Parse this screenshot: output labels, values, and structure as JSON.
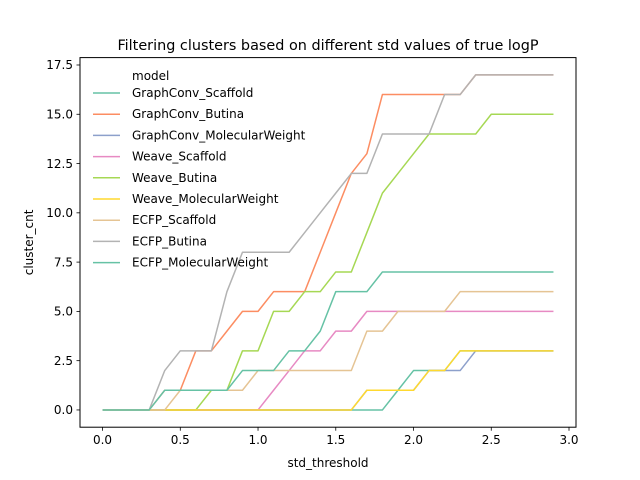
{
  "chart_data": {
    "type": "line",
    "title": "Filtering clusters based on different std values of true logP",
    "xlabel": "std_threshold",
    "ylabel": "cluster_cnt",
    "xlim": [
      -0.145,
      3.045
    ],
    "ylim": [
      -0.875,
      17.875
    ],
    "xticks": [
      0.0,
      0.5,
      1.0,
      1.5,
      2.0,
      2.5,
      3.0
    ],
    "xtick_labels": [
      "0.0",
      "0.5",
      "1.0",
      "1.5",
      "2.0",
      "2.5",
      "3.0"
    ],
    "yticks": [
      0.0,
      2.5,
      5.0,
      7.5,
      10.0,
      12.5,
      15.0,
      17.5
    ],
    "ytick_labels": [
      "0.0",
      "2.5",
      "5.0",
      "7.5",
      "10.0",
      "12.5",
      "15.0",
      "17.5"
    ],
    "legend_title": "model",
    "legend_position": "upper-left",
    "grid": false,
    "x": [
      0.0,
      0.1,
      0.2,
      0.3,
      0.4,
      0.5,
      0.6,
      0.7,
      0.8,
      0.9,
      1.0,
      1.1,
      1.2,
      1.3,
      1.4,
      1.5,
      1.6,
      1.7,
      1.8,
      1.9,
      2.0,
      2.1,
      2.2,
      2.3,
      2.4,
      2.5,
      2.6,
      2.7,
      2.8,
      2.9
    ],
    "series": [
      {
        "name": "GraphConv_Scaffold",
        "color": "#66c2a5",
        "values": [
          0,
          0,
          0,
          0,
          0,
          0,
          0,
          0,
          0,
          0,
          0,
          0,
          0,
          0,
          0,
          0,
          0,
          0,
          0,
          1,
          2,
          2,
          2,
          3,
          3,
          3,
          3,
          3,
          3,
          3
        ]
      },
      {
        "name": "GraphConv_Butina",
        "color": "#fc8d62",
        "values": [
          0,
          0,
          0,
          0,
          1,
          1,
          3,
          3,
          4,
          5,
          5,
          6,
          6,
          6,
          8,
          10,
          12,
          13,
          16,
          16,
          16,
          16,
          16,
          16,
          17,
          17,
          17,
          17,
          17,
          17
        ]
      },
      {
        "name": "GraphConv_MolecularWeight",
        "color": "#8da0cb",
        "values": [
          0,
          0,
          0,
          0,
          0,
          0,
          0,
          0,
          0,
          0,
          0,
          0,
          0,
          0,
          0,
          0,
          0,
          1,
          1,
          1,
          1,
          2,
          2,
          2,
          3,
          3,
          3,
          3,
          3,
          3
        ]
      },
      {
        "name": "Weave_Scaffold",
        "color": "#e78ac3",
        "values": [
          0,
          0,
          0,
          0,
          0,
          0,
          0,
          0,
          0,
          0,
          0,
          1,
          2,
          3,
          3,
          4,
          4,
          5,
          5,
          5,
          5,
          5,
          5,
          5,
          5,
          5,
          5,
          5,
          5,
          5
        ]
      },
      {
        "name": "Weave_Butina",
        "color": "#a6d854",
        "values": [
          0,
          0,
          0,
          0,
          0,
          0,
          0,
          1,
          1,
          3,
          3,
          5,
          5,
          6,
          6,
          7,
          7,
          9,
          11,
          12,
          13,
          14,
          14,
          14,
          14,
          15,
          15,
          15,
          15,
          15
        ]
      },
      {
        "name": "Weave_MolecularWeight",
        "color": "#ffd92f",
        "values": [
          0,
          0,
          0,
          0,
          0,
          0,
          0,
          0,
          0,
          0,
          0,
          0,
          0,
          0,
          0,
          0,
          0,
          1,
          1,
          1,
          1,
          2,
          2,
          3,
          3,
          3,
          3,
          3,
          3,
          3
        ]
      },
      {
        "name": "ECFP_Scaffold",
        "color": "#e5c494",
        "values": [
          0,
          0,
          0,
          0,
          0,
          1,
          1,
          1,
          1,
          1,
          2,
          2,
          2,
          2,
          2,
          2,
          2,
          4,
          4,
          5,
          5,
          5,
          5,
          6,
          6,
          6,
          6,
          6,
          6,
          6
        ]
      },
      {
        "name": "ECFP_Butina",
        "color": "#b3b3b3",
        "values": [
          0,
          0,
          0,
          0,
          2,
          3,
          3,
          3,
          6,
          8,
          8,
          8,
          8,
          9,
          10,
          11,
          12,
          12,
          14,
          14,
          14,
          14,
          16,
          16,
          17,
          17,
          17,
          17,
          17,
          17
        ]
      },
      {
        "name": "ECFP_MolecularWeight",
        "color": "#66c2a5",
        "values": [
          0,
          0,
          0,
          0,
          1,
          1,
          1,
          1,
          1,
          2,
          2,
          2,
          3,
          3,
          4,
          6,
          6,
          6,
          7,
          7,
          7,
          7,
          7,
          7,
          7,
          7,
          7,
          7,
          7,
          7
        ]
      }
    ]
  }
}
